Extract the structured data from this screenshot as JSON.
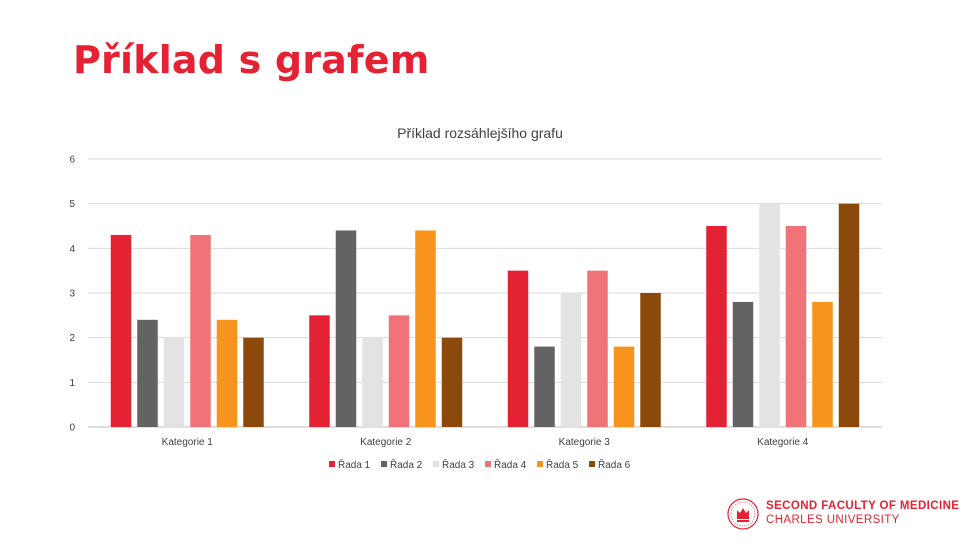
{
  "slide": {
    "title": "Příklad s grafem"
  },
  "chart_data": {
    "type": "bar",
    "title": "Příklad rozsáhlejšího grafu",
    "categories": [
      "Kategorie 1",
      "Kategorie 2",
      "Kategorie 3",
      "Kategorie 4"
    ],
    "series": [
      {
        "name": "Řada 1",
        "color": "#E52233",
        "values": [
          4.3,
          2.5,
          3.5,
          4.5
        ]
      },
      {
        "name": "Řada 2",
        "color": "#636363",
        "values": [
          2.4,
          4.4,
          1.8,
          2.8
        ]
      },
      {
        "name": "Řada 3",
        "color": "#E3E3E3",
        "values": [
          2.0,
          2.0,
          3.0,
          5.0
        ]
      },
      {
        "name": "Řada 4",
        "color": "#F07378",
        "values": [
          4.3,
          2.5,
          3.5,
          4.5
        ]
      },
      {
        "name": "Řada 5",
        "color": "#F7941D",
        "values": [
          2.4,
          4.4,
          1.8,
          2.8
        ]
      },
      {
        "name": "Řada 6",
        "color": "#8B4A0B",
        "values": [
          2.0,
          2.0,
          3.0,
          5.0
        ]
      }
    ],
    "ylim": [
      0,
      6
    ],
    "yticks": [
      "0",
      "1",
      "2",
      "3",
      "4",
      "5",
      "6"
    ],
    "xlabel": "",
    "ylabel": "",
    "grid": true,
    "legend": "bottom"
  },
  "logo": {
    "line1": "SECOND FACULTY OF MEDICINE",
    "line2": "CHARLES UNIVERSITY",
    "color": "#E52233"
  }
}
